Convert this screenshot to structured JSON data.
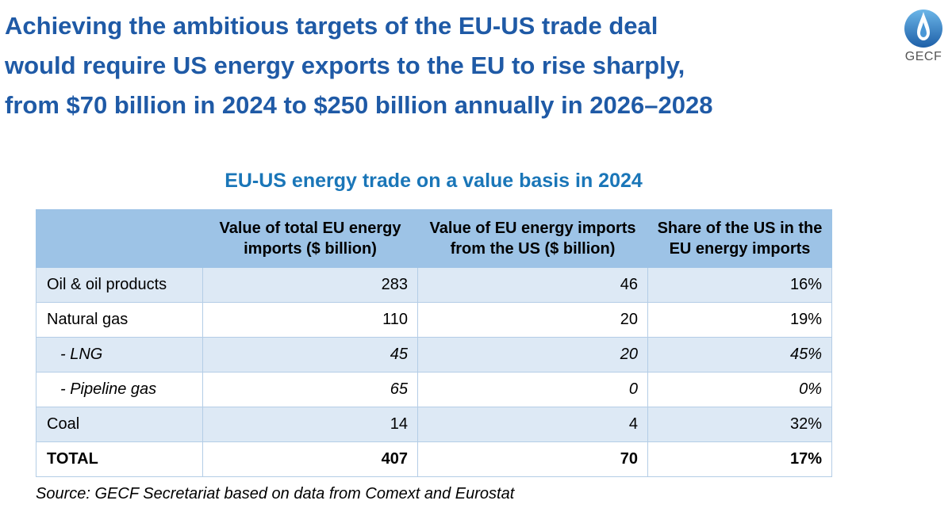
{
  "headline": {
    "line1": "Achieving the ambitious targets of the EU-US trade deal",
    "line2": "would require US energy exports to the EU to rise sharply,",
    "line3": "from $70 billion in 2024 to $250 billion annually in 2026–2028"
  },
  "logo": {
    "text": "GECF",
    "icon": "flame-drop-icon"
  },
  "table": {
    "title": "EU-US energy trade on a value basis in 2024",
    "headers": [
      "",
      "Value of total EU energy imports ($ billion)",
      "Value of EU energy imports from the US ($ billion)",
      "Share of the US in the EU energy imports"
    ],
    "rows": [
      [
        "Oil & oil products",
        "283",
        "46",
        "16%"
      ],
      [
        "Natural gas",
        "110",
        "20",
        "19%"
      ],
      [
        "- LNG",
        "45",
        "20",
        "45%"
      ],
      [
        "- Pipeline gas",
        "65",
        "0",
        "0%"
      ],
      [
        "Coal",
        "14",
        "4",
        "32%"
      ],
      [
        "TOTAL",
        "407",
        "70",
        "17%"
      ]
    ]
  },
  "source": "Source: GECF Secretariat based on data from Comext and Eurostat",
  "colors": {
    "headline": "#1f5aa6",
    "table_title": "#1a76b8",
    "header_fill": "#9dc3e6",
    "row_shade": "#dde9f5"
  }
}
